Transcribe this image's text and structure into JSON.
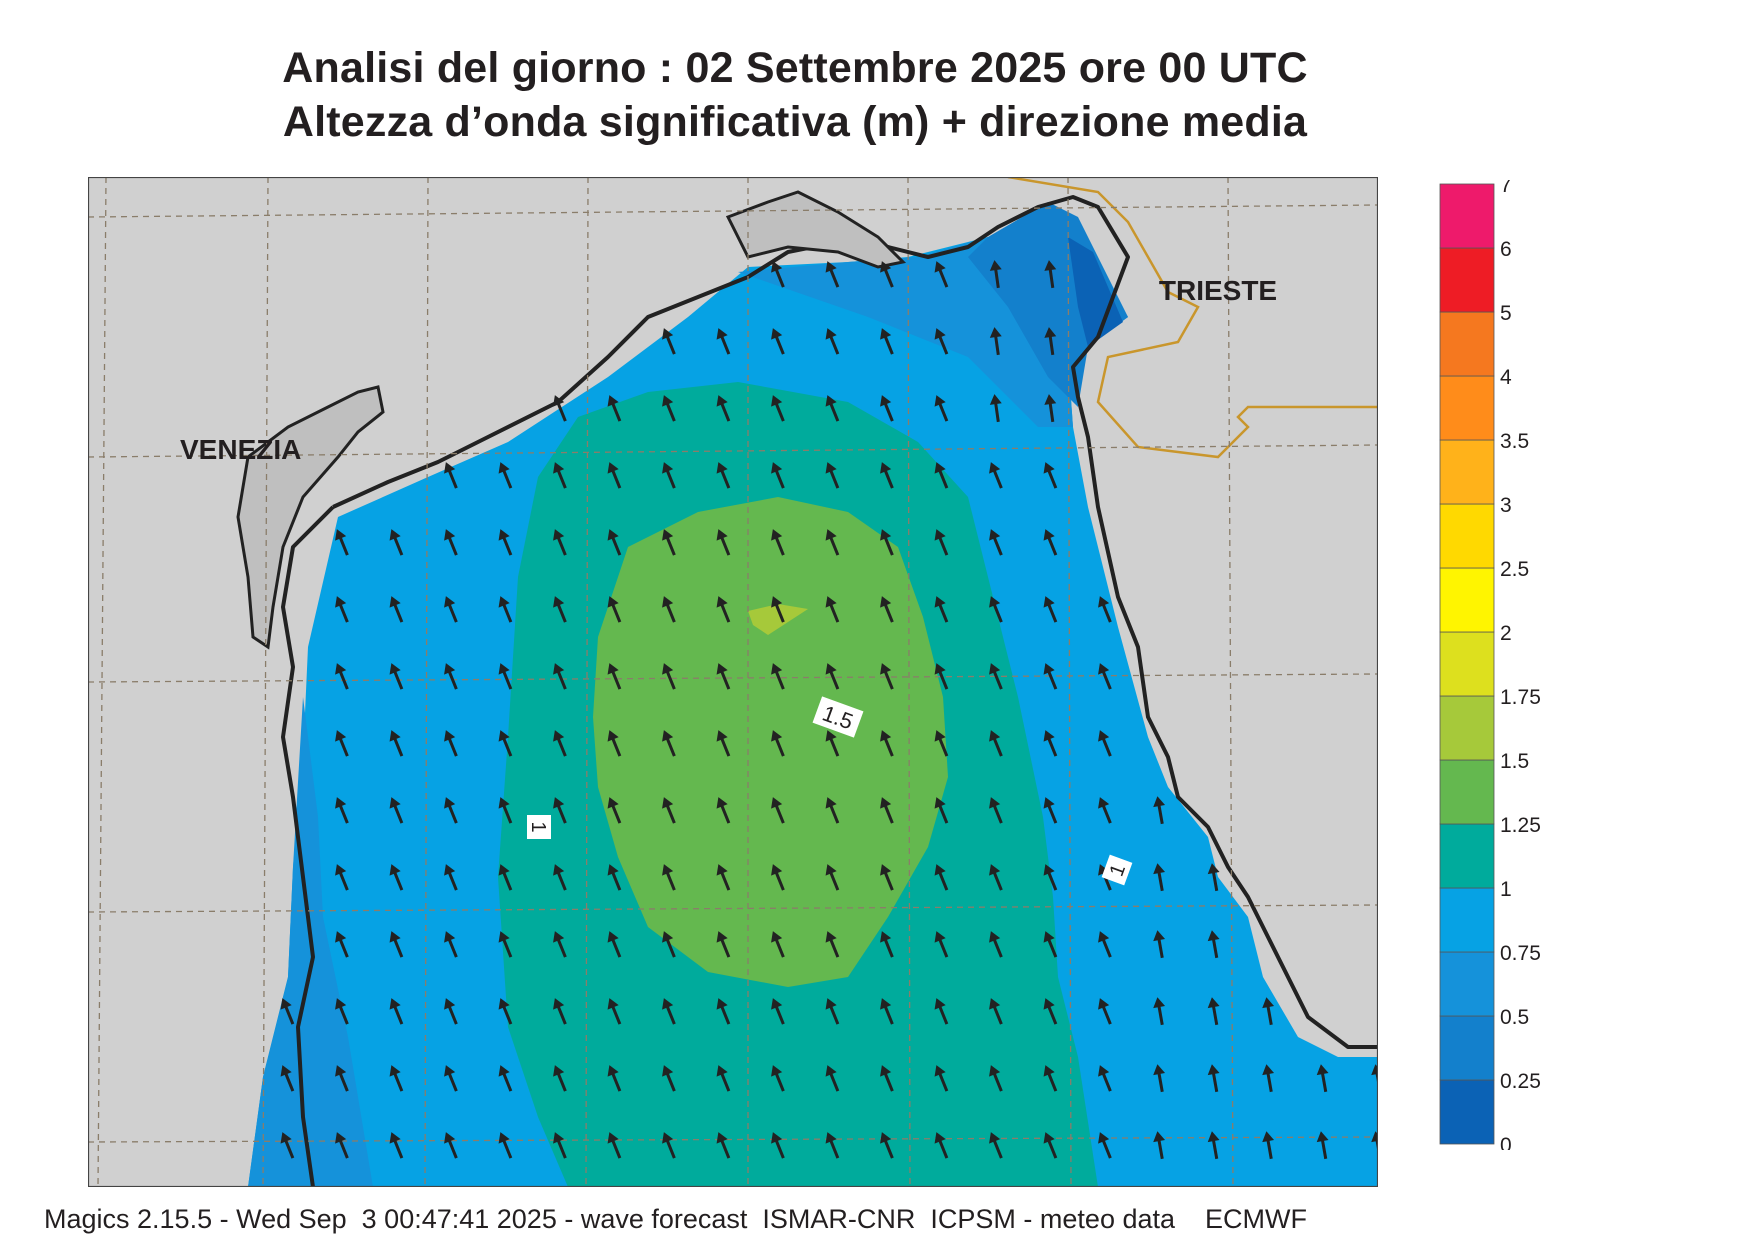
{
  "title": {
    "line1": "Analisi del giorno :  02 Settembre 2025   ore 00 UTC",
    "line2": "Altezza d’onda significativa (m) + direzione media"
  },
  "map": {
    "city_labels": [
      "VENEZIA",
      "TRIESTE"
    ],
    "contour_labels": [
      "1.5",
      "1",
      "1"
    ],
    "arrow_direction": "NNW"
  },
  "legend": {
    "levels": [
      "0",
      "0.25",
      "0.5",
      "0.75",
      "1",
      "1.25",
      "1.5",
      "1.75",
      "2",
      "2.5",
      "3",
      "3.5",
      "4",
      "5",
      "6",
      "7"
    ],
    "colors": [
      "#0b62b5",
      "#1380cc",
      "#1592da",
      "#06a2e4",
      "#00ab9c",
      "#64b84f",
      "#a6c93a",
      "#dde01e",
      "#fff500",
      "#ffd900",
      "#ffb21a",
      "#ff8c1a",
      "#f5781f",
      "#ee1c25",
      "#ee1a6b"
    ]
  },
  "footer": "Magics 2.15.5 - Wed Sep  3 00:47:41 2025 - wave forecast  ISMAR-CNR  ICPSM - meteo data    ECMWF"
}
